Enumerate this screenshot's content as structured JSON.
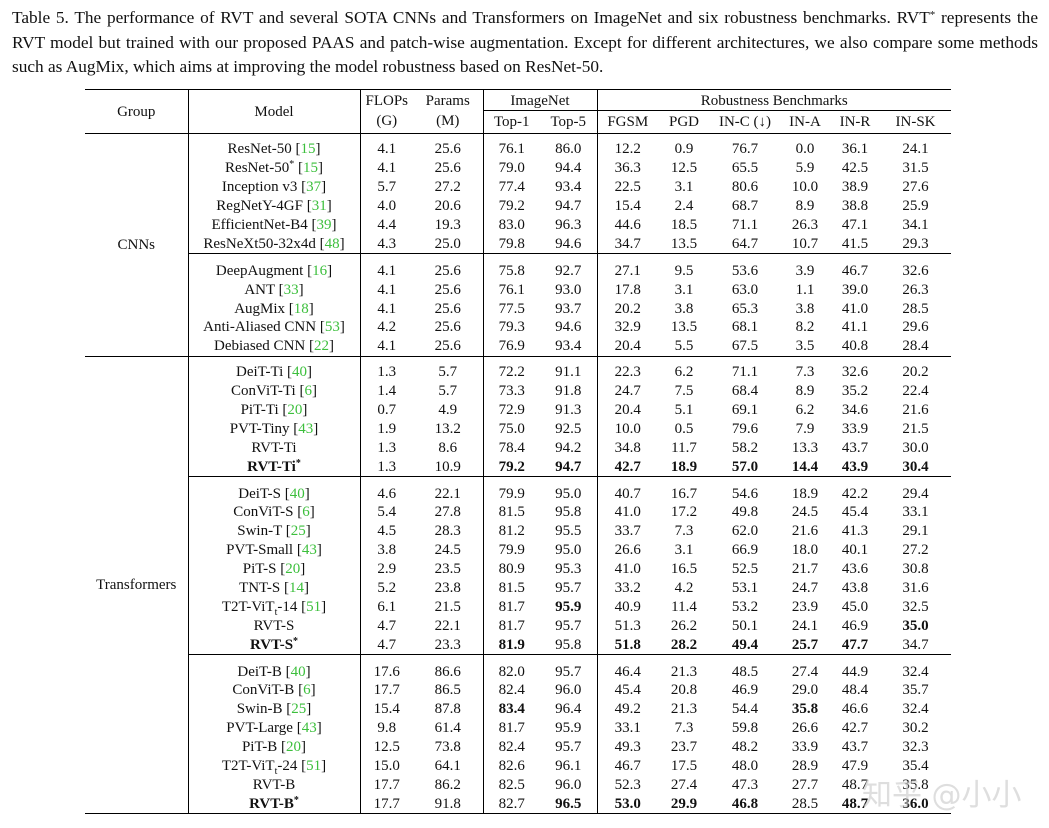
{
  "caption": {
    "before": "Table 5.  The performance of RVT and several SOTA CNNs and Transformers on ImageNet and six robustness benchmarks.  RVT",
    "sup": "*",
    "after": " represents the RVT model but trained with our proposed PAAS and patch-wise augmentation. Except for different architectures, we also compare some methods such as AugMix, which aims at improving the model robustness based on ResNet-50."
  },
  "table": {
    "header": {
      "group": "Group",
      "model": "Model",
      "flops": [
        "FLOPs",
        "(G)"
      ],
      "params": [
        "Params",
        "(M)"
      ],
      "imagenet": "ImageNet",
      "imagenet_cols": [
        "Top-1",
        "Top-5"
      ],
      "robust": "Robustness Benchmarks",
      "robust_cols": [
        "FGSM",
        "PGD",
        "IN-C (↓)",
        "IN-A",
        "IN-R",
        "IN-SK"
      ]
    },
    "ref_brackets": [
      "[",
      "]"
    ],
    "groups": [
      {
        "name": "CNNs",
        "blocks": [
          [
            {
              "model": "ResNet-50",
              "ref": "15",
              "values": [
                "4.1",
                "25.6",
                "76.1",
                "86.0",
                "12.2",
                "0.9",
                "76.7",
                "0.0",
                "36.1",
                "24.1"
              ]
            },
            {
              "model": "ResNet-50",
              "sup": "*",
              "ref": "15",
              "values": [
                "4.1",
                "25.6",
                "79.0",
                "94.4",
                "36.3",
                "12.5",
                "65.5",
                "5.9",
                "42.5",
                "31.5"
              ]
            },
            {
              "model": "Inception v3",
              "ref": "37",
              "values": [
                "5.7",
                "27.2",
                "77.4",
                "93.4",
                "22.5",
                "3.1",
                "80.6",
                "10.0",
                "38.9",
                "27.6"
              ]
            },
            {
              "model": "RegNetY-4GF",
              "ref": "31",
              "values": [
                "4.0",
                "20.6",
                "79.2",
                "94.7",
                "15.4",
                "2.4",
                "68.7",
                "8.9",
                "38.8",
                "25.9"
              ]
            },
            {
              "model": "EfficientNet-B4",
              "ref": "39",
              "values": [
                "4.4",
                "19.3",
                "83.0",
                "96.3",
                "44.6",
                "18.5",
                "71.1",
                "26.3",
                "47.1",
                "34.1"
              ]
            },
            {
              "model": "ResNeXt50-32x4d",
              "ref": "48",
              "values": [
                "4.3",
                "25.0",
                "79.8",
                "94.6",
                "34.7",
                "13.5",
                "64.7",
                "10.7",
                "41.5",
                "29.3"
              ]
            }
          ],
          [
            {
              "model": "DeepAugment",
              "ref": "16",
              "values": [
                "4.1",
                "25.6",
                "75.8",
                "92.7",
                "27.1",
                "9.5",
                "53.6",
                "3.9",
                "46.7",
                "32.6"
              ]
            },
            {
              "model": "ANT",
              "ref": "33",
              "values": [
                "4.1",
                "25.6",
                "76.1",
                "93.0",
                "17.8",
                "3.1",
                "63.0",
                "1.1",
                "39.0",
                "26.3"
              ]
            },
            {
              "model": "AugMix",
              "ref": "18",
              "values": [
                "4.1",
                "25.6",
                "77.5",
                "93.7",
                "20.2",
                "3.8",
                "65.3",
                "3.8",
                "41.0",
                "28.5"
              ]
            },
            {
              "model": "Anti-Aliased CNN",
              "ref": "53",
              "values": [
                "4.2",
                "25.6",
                "79.3",
                "94.6",
                "32.9",
                "13.5",
                "68.1",
                "8.2",
                "41.1",
                "29.6"
              ]
            },
            {
              "model": "Debiased CNN",
              "ref": "22",
              "values": [
                "4.1",
                "25.6",
                "76.9",
                "93.4",
                "20.4",
                "5.5",
                "67.5",
                "3.5",
                "40.8",
                "28.4"
              ]
            }
          ]
        ]
      },
      {
        "name": "Transformers",
        "blocks": [
          [
            {
              "model": "DeiT-Ti",
              "ref": "40",
              "values": [
                "1.3",
                "5.7",
                "72.2",
                "91.1",
                "22.3",
                "6.2",
                "71.1",
                "7.3",
                "32.6",
                "20.2"
              ]
            },
            {
              "model": "ConViT-Ti",
              "ref": "6",
              "values": [
                "1.4",
                "5.7",
                "73.3",
                "91.8",
                "24.7",
                "7.5",
                "68.4",
                "8.9",
                "35.2",
                "22.4"
              ]
            },
            {
              "model": "PiT-Ti",
              "ref": "20",
              "values": [
                "0.7",
                "4.9",
                "72.9",
                "91.3",
                "20.4",
                "5.1",
                "69.1",
                "6.2",
                "34.6",
                "21.6"
              ]
            },
            {
              "model": "PVT-Tiny",
              "ref": "43",
              "values": [
                "1.9",
                "13.2",
                "75.0",
                "92.5",
                "10.0",
                "0.5",
                "79.6",
                "7.9",
                "33.9",
                "21.5"
              ]
            },
            {
              "model": "RVT-Ti",
              "values": [
                "1.3",
                "8.6",
                "78.4",
                "94.2",
                "34.8",
                "11.7",
                "58.2",
                "13.3",
                "43.7",
                "30.0"
              ]
            },
            {
              "model": "RVT-Ti",
              "sup": "*",
              "bold_model": true,
              "bold": [
                2,
                3,
                4,
                5,
                6,
                7,
                8,
                9
              ],
              "values": [
                "1.3",
                "10.9",
                "79.2",
                "94.7",
                "42.7",
                "18.9",
                "57.0",
                "14.4",
                "43.9",
                "30.4"
              ]
            }
          ],
          [
            {
              "model": "DeiT-S",
              "ref": "40",
              "values": [
                "4.6",
                "22.1",
                "79.9",
                "95.0",
                "40.7",
                "16.7",
                "54.6",
                "18.9",
                "42.2",
                "29.4"
              ]
            },
            {
              "model": "ConViT-S",
              "ref": "6",
              "values": [
                "5.4",
                "27.8",
                "81.5",
                "95.8",
                "41.0",
                "17.2",
                "49.8",
                "24.5",
                "45.4",
                "33.1"
              ]
            },
            {
              "model": "Swin-T",
              "ref": "25",
              "values": [
                "4.5",
                "28.3",
                "81.2",
                "95.5",
                "33.7",
                "7.3",
                "62.0",
                "21.6",
                "41.3",
                "29.1"
              ]
            },
            {
              "model": "PVT-Small",
              "ref": "43",
              "values": [
                "3.8",
                "24.5",
                "79.9",
                "95.0",
                "26.6",
                "3.1",
                "66.9",
                "18.0",
                "40.1",
                "27.2"
              ]
            },
            {
              "model": "PiT-S",
              "ref": "20",
              "values": [
                "2.9",
                "23.5",
                "80.9",
                "95.3",
                "41.0",
                "16.5",
                "52.5",
                "21.7",
                "43.6",
                "30.8"
              ]
            },
            {
              "model": "TNT-S",
              "ref": "14",
              "values": [
                "5.2",
                "23.8",
                "81.5",
                "95.7",
                "33.2",
                "4.2",
                "53.1",
                "24.7",
                "43.8",
                "31.6"
              ]
            },
            {
              "model": "T2T-ViT",
              "sub": "t",
              "model_after": "-14",
              "ref": "51",
              "bold": [
                3
              ],
              "values": [
                "6.1",
                "21.5",
                "81.7",
                "95.9",
                "40.9",
                "11.4",
                "53.2",
                "23.9",
                "45.0",
                "32.5"
              ]
            },
            {
              "model": "RVT-S",
              "bold": [
                9
              ],
              "values": [
                "4.7",
                "22.1",
                "81.7",
                "95.7",
                "51.3",
                "26.2",
                "50.1",
                "24.1",
                "46.9",
                "35.0"
              ]
            },
            {
              "model": "RVT-S",
              "sup": "*",
              "bold_model": true,
              "bold": [
                2,
                4,
                5,
                6,
                7,
                8
              ],
              "values": [
                "4.7",
                "23.3",
                "81.9",
                "95.8",
                "51.8",
                "28.2",
                "49.4",
                "25.7",
                "47.7",
                "34.7"
              ]
            }
          ],
          [
            {
              "model": "DeiT-B",
              "ref": "40",
              "values": [
                "17.6",
                "86.6",
                "82.0",
                "95.7",
                "46.4",
                "21.3",
                "48.5",
                "27.4",
                "44.9",
                "32.4"
              ]
            },
            {
              "model": "ConViT-B",
              "ref": "6",
              "values": [
                "17.7",
                "86.5",
                "82.4",
                "96.0",
                "45.4",
                "20.8",
                "46.9",
                "29.0",
                "48.4",
                "35.7"
              ]
            },
            {
              "model": "Swin-B",
              "ref": "25",
              "bold": [
                2,
                7
              ],
              "values": [
                "15.4",
                "87.8",
                "83.4",
                "96.4",
                "49.2",
                "21.3",
                "54.4",
                "35.8",
                "46.6",
                "32.4"
              ]
            },
            {
              "model": "PVT-Large",
              "ref": "43",
              "values": [
                "9.8",
                "61.4",
                "81.7",
                "95.9",
                "33.1",
                "7.3",
                "59.8",
                "26.6",
                "42.7",
                "30.2"
              ]
            },
            {
              "model": "PiT-B",
              "ref": "20",
              "values": [
                "12.5",
                "73.8",
                "82.4",
                "95.7",
                "49.3",
                "23.7",
                "48.2",
                "33.9",
                "43.7",
                "32.3"
              ]
            },
            {
              "model": "T2T-ViT",
              "sub": "t",
              "model_after": "-24",
              "ref": "51",
              "values": [
                "15.0",
                "64.1",
                "82.6",
                "96.1",
                "46.7",
                "17.5",
                "48.0",
                "28.9",
                "47.9",
                "35.4"
              ]
            },
            {
              "model": "RVT-B",
              "values": [
                "17.7",
                "86.2",
                "82.5",
                "96.0",
                "52.3",
                "27.4",
                "47.3",
                "27.7",
                "48.7",
                "35.8"
              ]
            },
            {
              "model": "RVT-B",
              "sup": "*",
              "bold_model": true,
              "bold": [
                3,
                4,
                5,
                6,
                8,
                9
              ],
              "values": [
                "17.7",
                "91.8",
                "82.7",
                "96.5",
                "53.0",
                "29.9",
                "46.8",
                "28.5",
                "48.7",
                "36.0"
              ]
            }
          ]
        ]
      }
    ]
  },
  "watermark": "知乎 @小小"
}
